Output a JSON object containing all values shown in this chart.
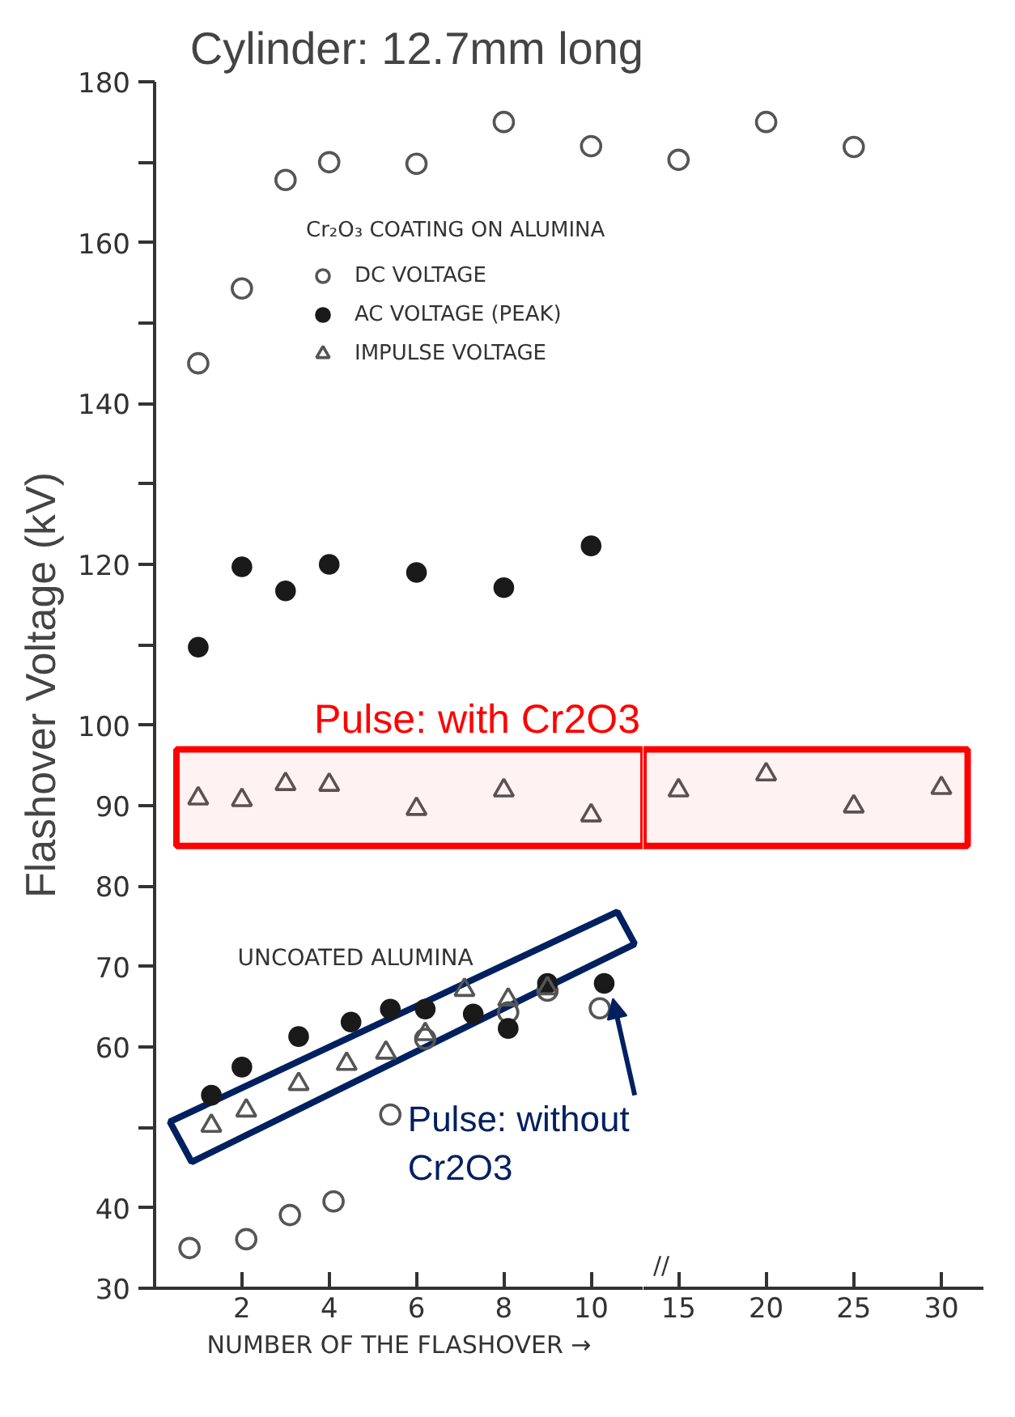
{
  "chart_data": [
    {
      "type": "scatter",
      "title": "Cylinder: 12.7mm long",
      "xlabel": "NUMBER OF THE FLASHOVER →",
      "ylabel": "Flashover Voltage (kV)",
      "legend_title": "Cr₂O₃ COATING ON ALUMINA",
      "legend": "top right",
      "grid": false,
      "xlim": [
        0,
        11.2
      ],
      "xticks": [
        2,
        4,
        6,
        8,
        10
      ],
      "ylim": [
        30,
        180
      ],
      "yticks": [
        30,
        40,
        {
          "value": 50,
          "label": null
        },
        60,
        70,
        80,
        90,
        100,
        {
          "value": 110,
          "label": null
        },
        120,
        {
          "value": 130,
          "label": null
        },
        140,
        {
          "value": 150,
          "label": null
        },
        160,
        {
          "value": 170,
          "label": null
        },
        180
      ],
      "series": [
        {
          "name": "DC VOLTAGE",
          "color": "#555555",
          "marker": "circle",
          "x": [
            1,
            2,
            3,
            4,
            6,
            8,
            10
          ],
          "values": [
            145,
            154.3,
            167.8,
            170,
            169.8,
            175,
            172
          ]
        },
        {
          "name": "AC VOLTAGE (PEAK)",
          "color": "#1a1a1a",
          "marker": "circle",
          "x": [
            1,
            2,
            3,
            4,
            6,
            8,
            10
          ],
          "values": [
            109.7,
            119.7,
            116.7,
            120,
            119,
            117.1,
            122.3
          ]
        },
        {
          "name": "IMPULSE VOLTAGE",
          "color": "#555555",
          "marker": "triangle",
          "x": [
            1,
            2,
            3,
            4,
            6,
            8,
            10
          ],
          "values": [
            90.9,
            90.7,
            92.7,
            92.6,
            89.6,
            91.9,
            88.8
          ]
        },
        {
          "color": "#555555",
          "marker": "circle",
          "x": [
            0.8,
            2.1,
            3.1,
            4.1,
            5.4,
            6.2,
            8.1,
            9.0,
            10.2
          ],
          "values": [
            35,
            36.1,
            39.1,
            40.8,
            51.6,
            61,
            64.3,
            67,
            64.8
          ]
        },
        {
          "color": "#1a1a1a",
          "marker": "circle",
          "x": [
            1.3,
            2,
            3.3,
            4.5,
            5.4,
            6.2,
            7.3,
            8.1,
            9,
            10.3
          ],
          "values": [
            54,
            57.5,
            61.3,
            63.1,
            64.7,
            64.7,
            64.1,
            62.3,
            67.9,
            67.9
          ]
        },
        {
          "color": "#555555",
          "marker": "triangle",
          "x": [
            1.3,
            2.1,
            3.3,
            4.4,
            5.3,
            6.2,
            7.1,
            8.1,
            9
          ],
          "values": [
            50.2,
            52.1,
            55.4,
            57.9,
            59.3,
            61.6,
            67.1,
            65.9,
            67.3
          ]
        }
      ],
      "bands": [
        {
          "axis": "y",
          "from": 85,
          "to": 97,
          "label": "Pulse: with Cr2O3",
          "color": "#ff0000"
        }
      ],
      "annotations": [
        "UNCOATED ALUMINA",
        {
          "text": "Pulse: without\nCr2O3",
          "x": 10.4,
          "y": 66
        }
      ]
    },
    {
      "type": "scatter",
      "grid": false,
      "tick_labels": "x",
      "xlim": [
        13,
        32.4
      ],
      "xticks": [
        15,
        20,
        25,
        30
      ],
      "ylim": [
        30,
        180
      ],
      "annotations": [
        "//"
      ],
      "series": [
        {
          "color": "#555555",
          "marker": "circle",
          "x": [
            15,
            20,
            25
          ],
          "values": [
            170.3,
            175,
            171.9
          ]
        },
        {
          "color": "#555555",
          "marker": "triangle",
          "x": [
            15,
            20,
            25,
            30
          ],
          "values": [
            91.9,
            93.9,
            89.9,
            92.2
          ]
        }
      ],
      "bands": [
        {
          "axis": "y",
          "from": 85,
          "to": 97,
          "color": "#ff0000"
        }
      ]
    }
  ]
}
